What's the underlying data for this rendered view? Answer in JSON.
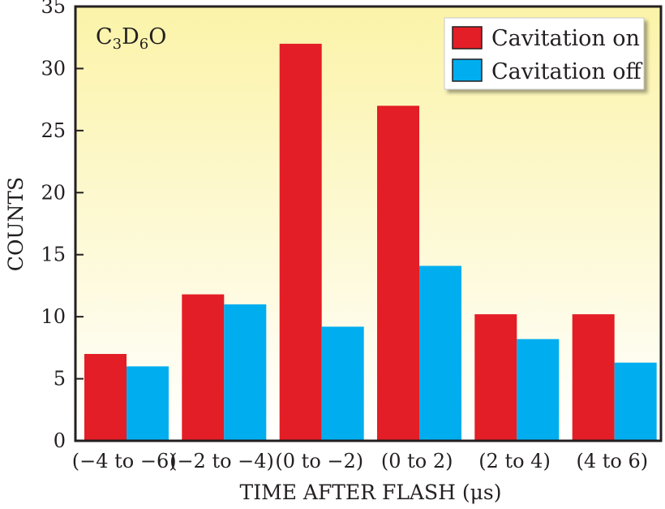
{
  "chart_data": {
    "type": "bar",
    "title": "",
    "xlabel": "TIME AFTER FLASH (μs)",
    "ylabel": "COUNTS",
    "ylim": [
      0,
      35
    ],
    "yticks": [
      0,
      5,
      10,
      15,
      20,
      25,
      30,
      35
    ],
    "categories": [
      "(−4 to −6)",
      "(−2 to −4)",
      "(0 to −2)",
      "(0 to 2)",
      "(2 to 4)",
      "(4 to 6)"
    ],
    "series": [
      {
        "name": "Cavitation on",
        "color": "#e31e26",
        "values": [
          7,
          11.8,
          32,
          27,
          10.2,
          10.2
        ]
      },
      {
        "name": "Cavitation off",
        "color": "#00aeef",
        "values": [
          6,
          11,
          9.2,
          14.1,
          8.2,
          6.3
        ]
      }
    ],
    "legend_position": "top-right",
    "annotation": {
      "formula": "C3D6O",
      "parts": [
        {
          "text": "C",
          "sub": false
        },
        {
          "text": "3",
          "sub": true
        },
        {
          "text": "D",
          "sub": false
        },
        {
          "text": "6",
          "sub": true
        },
        {
          "text": "O",
          "sub": false
        }
      ]
    },
    "background_gradient": [
      "#fbf3a8",
      "#ffffff"
    ]
  }
}
